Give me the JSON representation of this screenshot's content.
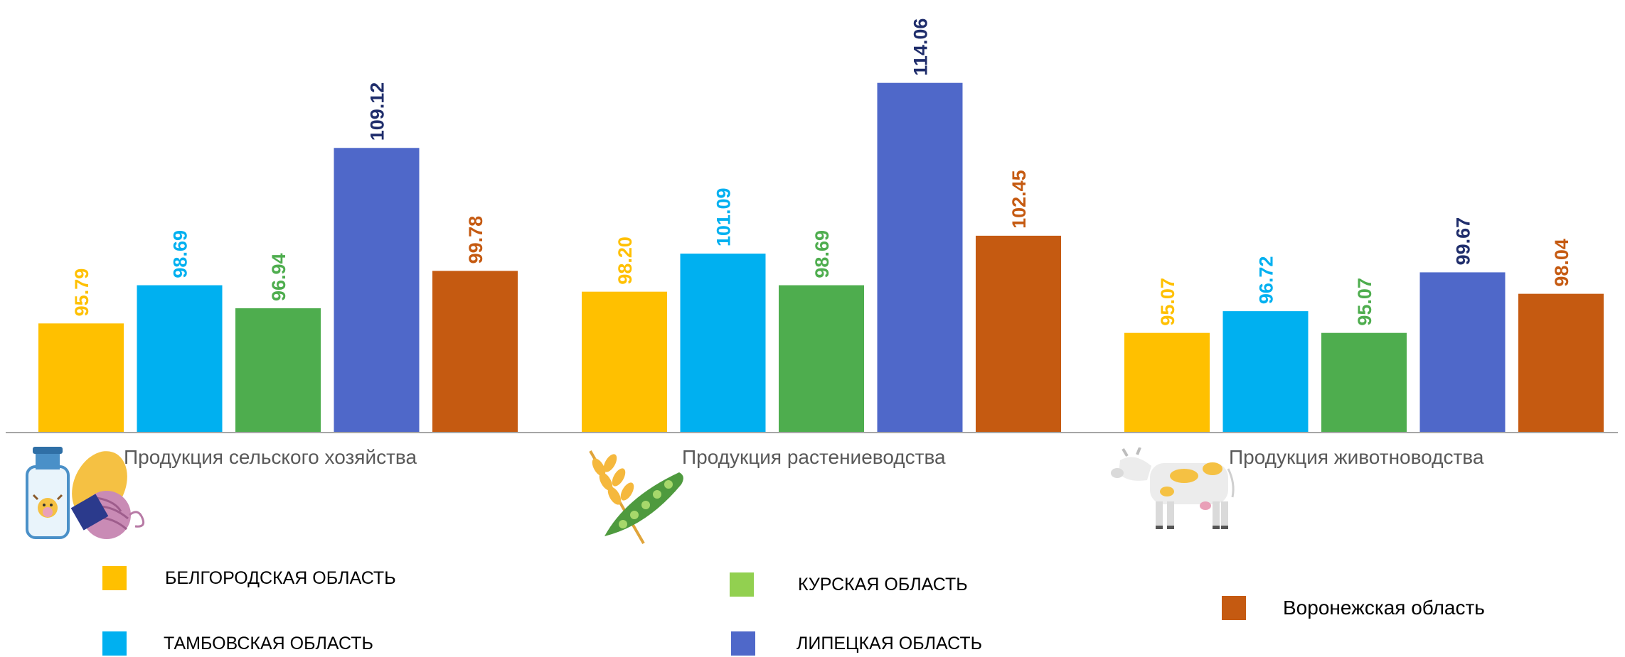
{
  "chart_data": {
    "type": "bar",
    "categories": [
      "Продукция сельского хозяйства",
      "Продукция растениеводства",
      "Продукция животноводства"
    ],
    "series": [
      {
        "name": "БЕЛГОРОДСКАЯ ОБЛАСТЬ",
        "color": "#FFC000",
        "label_color": "#FFC000",
        "values": [
          95.79,
          98.2,
          95.07
        ],
        "labels": [
          "95.79",
          "98.20",
          "95.07"
        ]
      },
      {
        "name": "ТАМБОВСКАЯ ОБЛАСТЬ",
        "color": "#00B0F0",
        "label_color": "#00B0F0",
        "values": [
          98.69,
          101.09,
          96.72
        ],
        "labels": [
          "98.69",
          "101.09",
          "96.72"
        ]
      },
      {
        "name": "КУРСКАЯ ОБЛАСТЬ",
        "color": "#4EAD4E",
        "label_color": "#4EAD4E",
        "values": [
          96.94,
          98.69,
          95.07
        ],
        "labels": [
          "96.94",
          "98.69",
          "95.07"
        ]
      },
      {
        "name": "ЛИПЕЦКАЯ ОБЛАСТЬ",
        "color": "#4F68C9",
        "label_color": "#1F2D6B",
        "values": [
          109.12,
          114.06,
          99.67
        ],
        "labels": [
          "109.12",
          "114.06",
          "99.67"
        ]
      },
      {
        "name": "Воронежская область",
        "color": "#C55A11",
        "label_color": "#C55A11",
        "values": [
          99.78,
          102.45,
          98.04
        ],
        "labels": [
          "99.78",
          "102.45",
          "98.04"
        ]
      }
    ],
    "legend_swatch_colors": [
      "#FFC000",
      "#00B0F0",
      "#92D050",
      "#4F68C9",
      "#C55A11"
    ],
    "ylim": [
      87.5,
      115.5
    ],
    "grid": false,
    "legend_position": "bottom",
    "xlabel": "",
    "ylabel": ""
  },
  "icons": [
    "milk-bottle-icon",
    "wheat-pea-icon",
    "cow-icon"
  ]
}
